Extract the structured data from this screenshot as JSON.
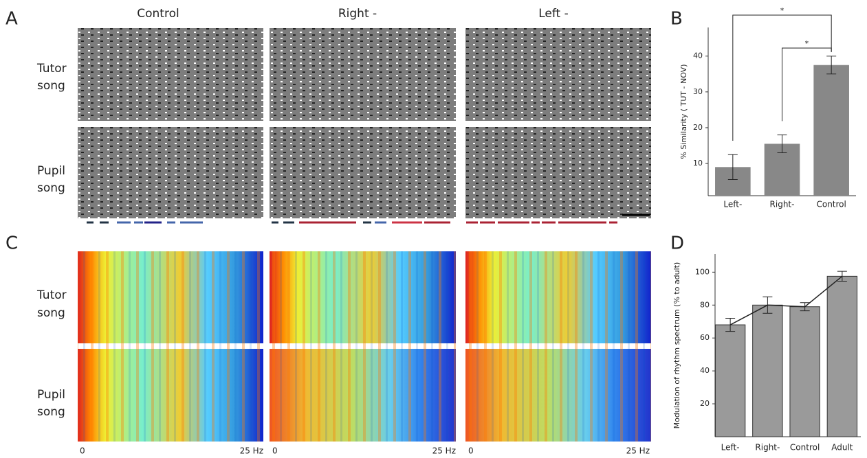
{
  "panel_labels": [
    "A",
    "B",
    "C",
    "D"
  ],
  "column_titles": [
    "Control",
    "Right -",
    "Left -"
  ],
  "row_labels_a": [
    [
      "Tutor",
      "song"
    ],
    [
      "Pupil",
      "song"
    ]
  ],
  "row_labels_c": [
    [
      "Tutor",
      "song"
    ],
    [
      "Pupil",
      "song"
    ]
  ],
  "freq_axis": {
    "start": "0",
    "end": "25 Hz"
  },
  "chart_data": [
    {
      "type": "bar",
      "ylabel": "% Similarity ( TUT - NOV)",
      "categories": [
        "Left-",
        "Right-",
        "Control"
      ],
      "values": [
        9,
        15.5,
        37.5
      ],
      "errors": [
        3.5,
        2.5,
        2.5
      ],
      "color": "#888888",
      "ylim": [
        1,
        48
      ],
      "yticks": [
        10,
        20,
        30,
        40
      ],
      "significance": [
        {
          "from": 0,
          "to": 2,
          "label": "*"
        },
        {
          "from": 1,
          "to": 2,
          "label": "*"
        }
      ]
    },
    {
      "type": "bar",
      "ylabel": "Modulation of rhythm spectrum (% to adult)",
      "categories": [
        "Left-",
        "Right-",
        "Control",
        "Adult"
      ],
      "values": [
        68,
        80,
        79,
        97.5
      ],
      "errors": [
        4,
        5,
        2.5,
        3
      ],
      "color": "#9a9a9a",
      "ylim": [
        0,
        111
      ],
      "yticks": [
        20,
        40,
        60,
        80,
        100
      ],
      "line_overlay": true
    }
  ]
}
